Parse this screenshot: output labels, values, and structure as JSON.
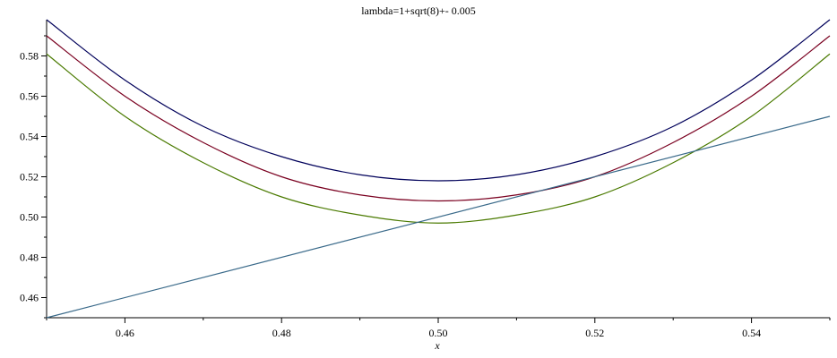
{
  "chart_data": {
    "type": "line",
    "title": "lambda=1+sqrt(8)+- 0.005",
    "xlabel": "x",
    "ylabel": "",
    "xlim": [
      0.45,
      0.55
    ],
    "ylim": [
      0.45,
      0.598
    ],
    "x_ticks": [
      0.46,
      0.48,
      0.5,
      0.52,
      0.54
    ],
    "x_tick_labels": [
      "0.46",
      "0.48",
      "0.50",
      "0.52",
      "0.54"
    ],
    "y_ticks": [
      0.46,
      0.48,
      0.5,
      0.52,
      0.54,
      0.56,
      0.58
    ],
    "y_tick_labels": [
      "0.46",
      "0.48",
      "0.50",
      "0.52",
      "0.54",
      "0.56",
      "0.58"
    ],
    "grid": false,
    "series": [
      {
        "color": "#00005a",
        "x": [
          0.45,
          0.46,
          0.47,
          0.48,
          0.49,
          0.5,
          0.51,
          0.52,
          0.53,
          0.54,
          0.55
        ],
        "y": [
          0.598,
          0.568,
          0.545,
          0.53,
          0.521,
          0.518,
          0.521,
          0.53,
          0.545,
          0.568,
          0.598
        ]
      },
      {
        "color": "#7a0020",
        "x": [
          0.45,
          0.46,
          0.47,
          0.48,
          0.49,
          0.5,
          0.51,
          0.52,
          0.53,
          0.54,
          0.55
        ],
        "y": [
          0.59,
          0.56,
          0.537,
          0.52,
          0.511,
          0.508,
          0.511,
          0.52,
          0.537,
          0.56,
          0.59
        ]
      },
      {
        "color": "#4a7a00",
        "x": [
          0.45,
          0.46,
          0.47,
          0.48,
          0.49,
          0.5,
          0.51,
          0.52,
          0.53,
          0.54,
          0.55
        ],
        "y": [
          0.581,
          0.55,
          0.527,
          0.51,
          0.501,
          0.497,
          0.501,
          0.51,
          0.527,
          0.55,
          0.581
        ]
      },
      {
        "color": "#3a6a8a",
        "x": [
          0.45,
          0.55
        ],
        "y": [
          0.45,
          0.55
        ]
      }
    ]
  }
}
